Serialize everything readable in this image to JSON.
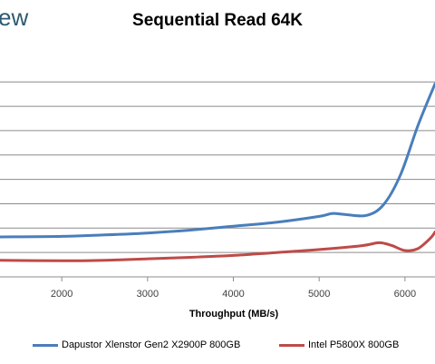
{
  "watermark": "ew",
  "chart_data": {
    "type": "line",
    "title": "Sequential Read 64K",
    "xlabel": "Throughput (MB/s)",
    "ylabel": "",
    "xlim": [
      1280,
      6350
    ],
    "ylim": [
      0,
      2.3
    ],
    "x_ticks": [
      2000,
      3000,
      4000,
      5000,
      6000
    ],
    "y_gridlines": [
      0.25,
      0.5,
      0.75,
      1.0,
      1.25,
      1.5,
      1.75,
      2.0
    ],
    "grid": true,
    "legend": "bottom",
    "series": [
      {
        "name": "Dapustor Xlenstor Gen2 X2900P 800GB",
        "color": "#4a7ebb",
        "points": [
          [
            1280,
            0.41
          ],
          [
            2000,
            0.415
          ],
          [
            2500,
            0.43
          ],
          [
            3000,
            0.45
          ],
          [
            3500,
            0.48
          ],
          [
            4000,
            0.52
          ],
          [
            4500,
            0.56
          ],
          [
            5000,
            0.62
          ],
          [
            5150,
            0.65
          ],
          [
            5300,
            0.64
          ],
          [
            5550,
            0.63
          ],
          [
            5750,
            0.74
          ],
          [
            5950,
            1.05
          ],
          [
            6150,
            1.55
          ],
          [
            6350,
            1.98
          ]
        ]
      },
      {
        "name": "Intel P5800X 800GB",
        "color": "#be4b48",
        "points": [
          [
            1280,
            0.17
          ],
          [
            2000,
            0.165
          ],
          [
            2500,
            0.17
          ],
          [
            3000,
            0.185
          ],
          [
            3500,
            0.2
          ],
          [
            4000,
            0.22
          ],
          [
            4500,
            0.25
          ],
          [
            5000,
            0.28
          ],
          [
            5500,
            0.32
          ],
          [
            5700,
            0.35
          ],
          [
            5850,
            0.32
          ],
          [
            6000,
            0.27
          ],
          [
            6150,
            0.29
          ],
          [
            6300,
            0.4
          ],
          [
            6350,
            0.46
          ]
        ]
      }
    ]
  }
}
